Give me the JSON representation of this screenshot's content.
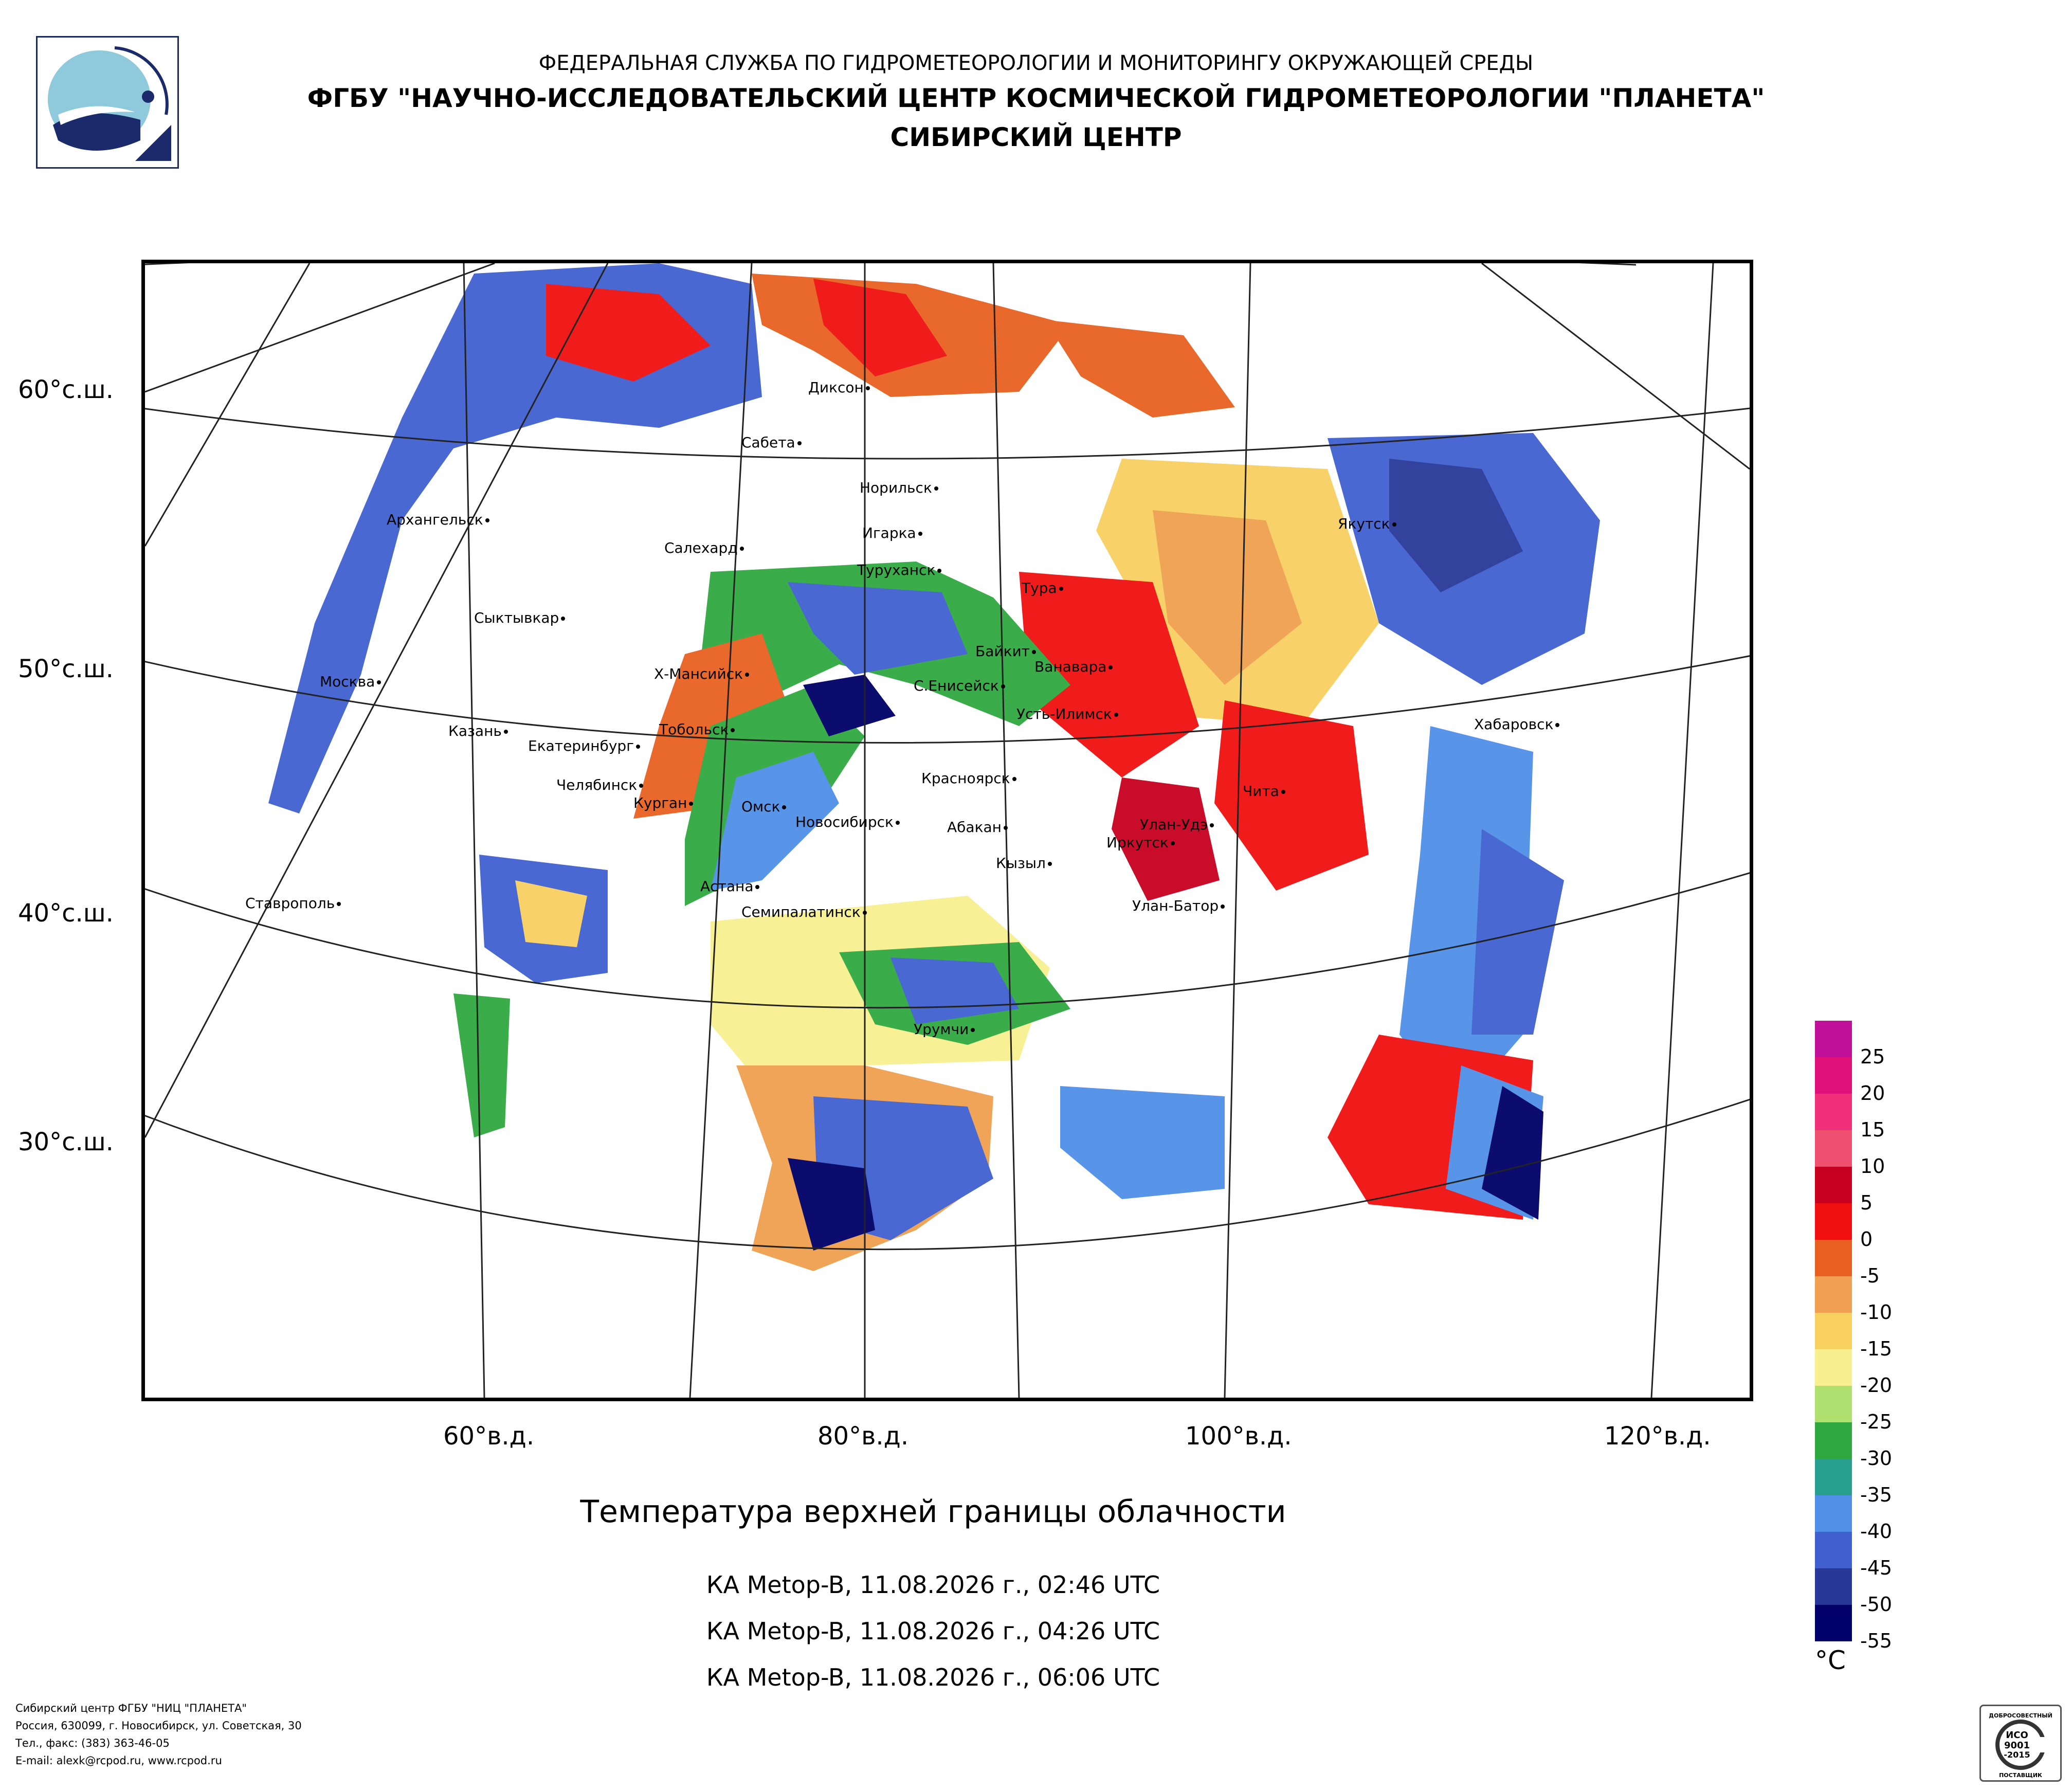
{
  "header": {
    "line1": "ФЕДЕРАЛЬНАЯ СЛУЖБА ПО ГИДРОМЕТЕОРОЛОГИИ И МОНИТОРИНГУ ОКРУЖАЮЩЕЙ СРЕДЫ",
    "line2": "ФГБУ \"НАУЧНО-ИССЛЕДОВАТЕЛЬСКИЙ ЦЕНТР КОСМИЧЕСКОЙ ГИДРОМЕТЕОРОЛОГИИ \"ПЛАНЕТА\"",
    "line3": "СИБИРСКИЙ ЦЕНТР"
  },
  "latitude_labels": [
    "60°с.ш.",
    "50°с.ш.",
    "40°с.ш.",
    "30°с.ш."
  ],
  "longitude_labels": [
    "60°в.д.",
    "80°в.д.",
    "100°в.д.",
    "120°в.д."
  ],
  "cities": [
    "Диксон",
    "Сабета",
    "Норильск",
    "Архангельск",
    "Игарка",
    "Салехард",
    "Туруханск",
    "Якутск",
    "Тура",
    "Сыктывкар",
    "Байкит",
    "Ванавара",
    "Москва",
    "Х-Мансийск",
    "С.Енисейск",
    "Усть-Илимск",
    "Хабаровск",
    "Казань",
    "Екатеринбург",
    "Тобольск",
    "Красноярск",
    "Челябинск",
    "Курган",
    "Омск",
    "Новосибирск",
    "Чита",
    "Абакан",
    "Улан-Удэ",
    "Иркутск",
    "Кызыл",
    "Астана",
    "Ставрополь",
    "Семипалатинск",
    "Улан-Батор",
    "Урумчи"
  ],
  "title": "Температура верхней границы облачности",
  "passes": [
    "КА Metop-B, 11.08.2026 г., 02:46 UTC",
    "КА Metop-B, 11.08.2026 г., 04:26 UTC",
    "КА Metop-B, 11.08.2026 г., 06:06 UTC"
  ],
  "legend": {
    "unit": "°C",
    "ticks": [
      "25",
      "20",
      "15",
      "10",
      "5",
      "0",
      "-5",
      "-10",
      "-15",
      "-20",
      "-25",
      "-30",
      "-35",
      "-40",
      "-45",
      "-50",
      "-55"
    ],
    "colors": [
      "#c0109a",
      "#e0107a",
      "#f0307a",
      "#f05070",
      "#c80020",
      "#f01010",
      "#e86020",
      "#f0a050",
      "#f8d060",
      "#f8f090",
      "#b0e070",
      "#30a840",
      "#28a090",
      "#5090e8",
      "#4060d0",
      "#283898",
      "#000068"
    ]
  },
  "footer": [
    "Сибирский центр ФГБУ \"НИЦ \"ПЛАНЕТА\"",
    "Россия, 630099, г. Новосибирск, ул. Советская, 30",
    "Тел., факс: (383) 363-46-05",
    "E-mail: alexk@rcpod.ru, www.rcpod.ru"
  ],
  "certificate": {
    "top": "ДОБРОСОВЕСТНЫЙ",
    "iso": "ИСО",
    "num": "9001",
    "year": "-2015",
    "bottom": "ПОСТАВЩИК"
  }
}
